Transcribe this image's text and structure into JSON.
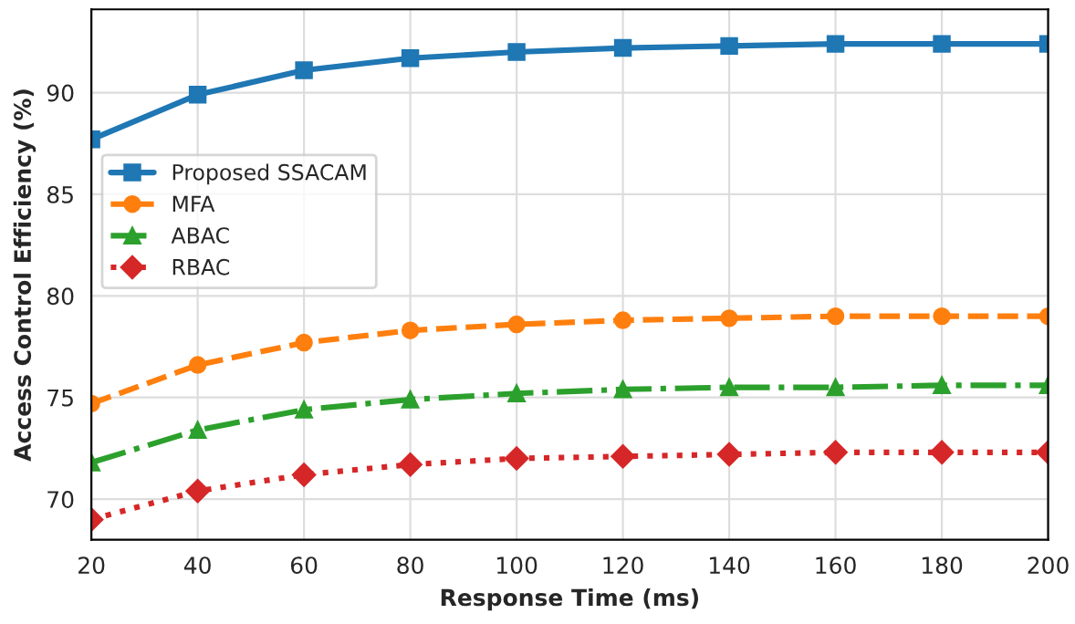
{
  "chart_data": {
    "type": "line",
    "xlabel": "Response Time (ms)",
    "ylabel": "Access Control Efficiency (%)",
    "x": [
      20,
      40,
      60,
      80,
      100,
      120,
      140,
      160,
      180,
      200
    ],
    "series": [
      {
        "name": "Proposed SSACAM",
        "color": "#1f77b4",
        "marker": "square",
        "line_style": "solid",
        "values": [
          87.7,
          89.9,
          91.1,
          91.7,
          92.0,
          92.2,
          92.3,
          92.4,
          92.4,
          92.4
        ]
      },
      {
        "name": "MFA",
        "color": "#ff7f0e",
        "marker": "circle",
        "line_style": "dashed",
        "values": [
          74.7,
          76.6,
          77.7,
          78.3,
          78.6,
          78.8,
          78.9,
          79.0,
          79.0,
          79.0
        ]
      },
      {
        "name": "ABAC",
        "color": "#2ca02c",
        "marker": "triangle",
        "line_style": "dashdot",
        "values": [
          71.8,
          73.4,
          74.4,
          74.9,
          75.2,
          75.4,
          75.5,
          75.5,
          75.6,
          75.6
        ]
      },
      {
        "name": "RBAC",
        "color": "#d62728",
        "marker": "diamond",
        "line_style": "dotted",
        "values": [
          69.0,
          70.4,
          71.2,
          71.7,
          72.0,
          72.1,
          72.2,
          72.3,
          72.3,
          72.3
        ]
      }
    ],
    "xlim": [
      20,
      200
    ],
    "xticks": [
      20,
      40,
      60,
      80,
      100,
      120,
      140,
      160,
      180,
      200
    ],
    "ylim": [
      68.0,
      94.1
    ],
    "yticks": [
      70,
      75,
      80,
      85,
      90
    ],
    "grid": true,
    "legend": "center left"
  }
}
